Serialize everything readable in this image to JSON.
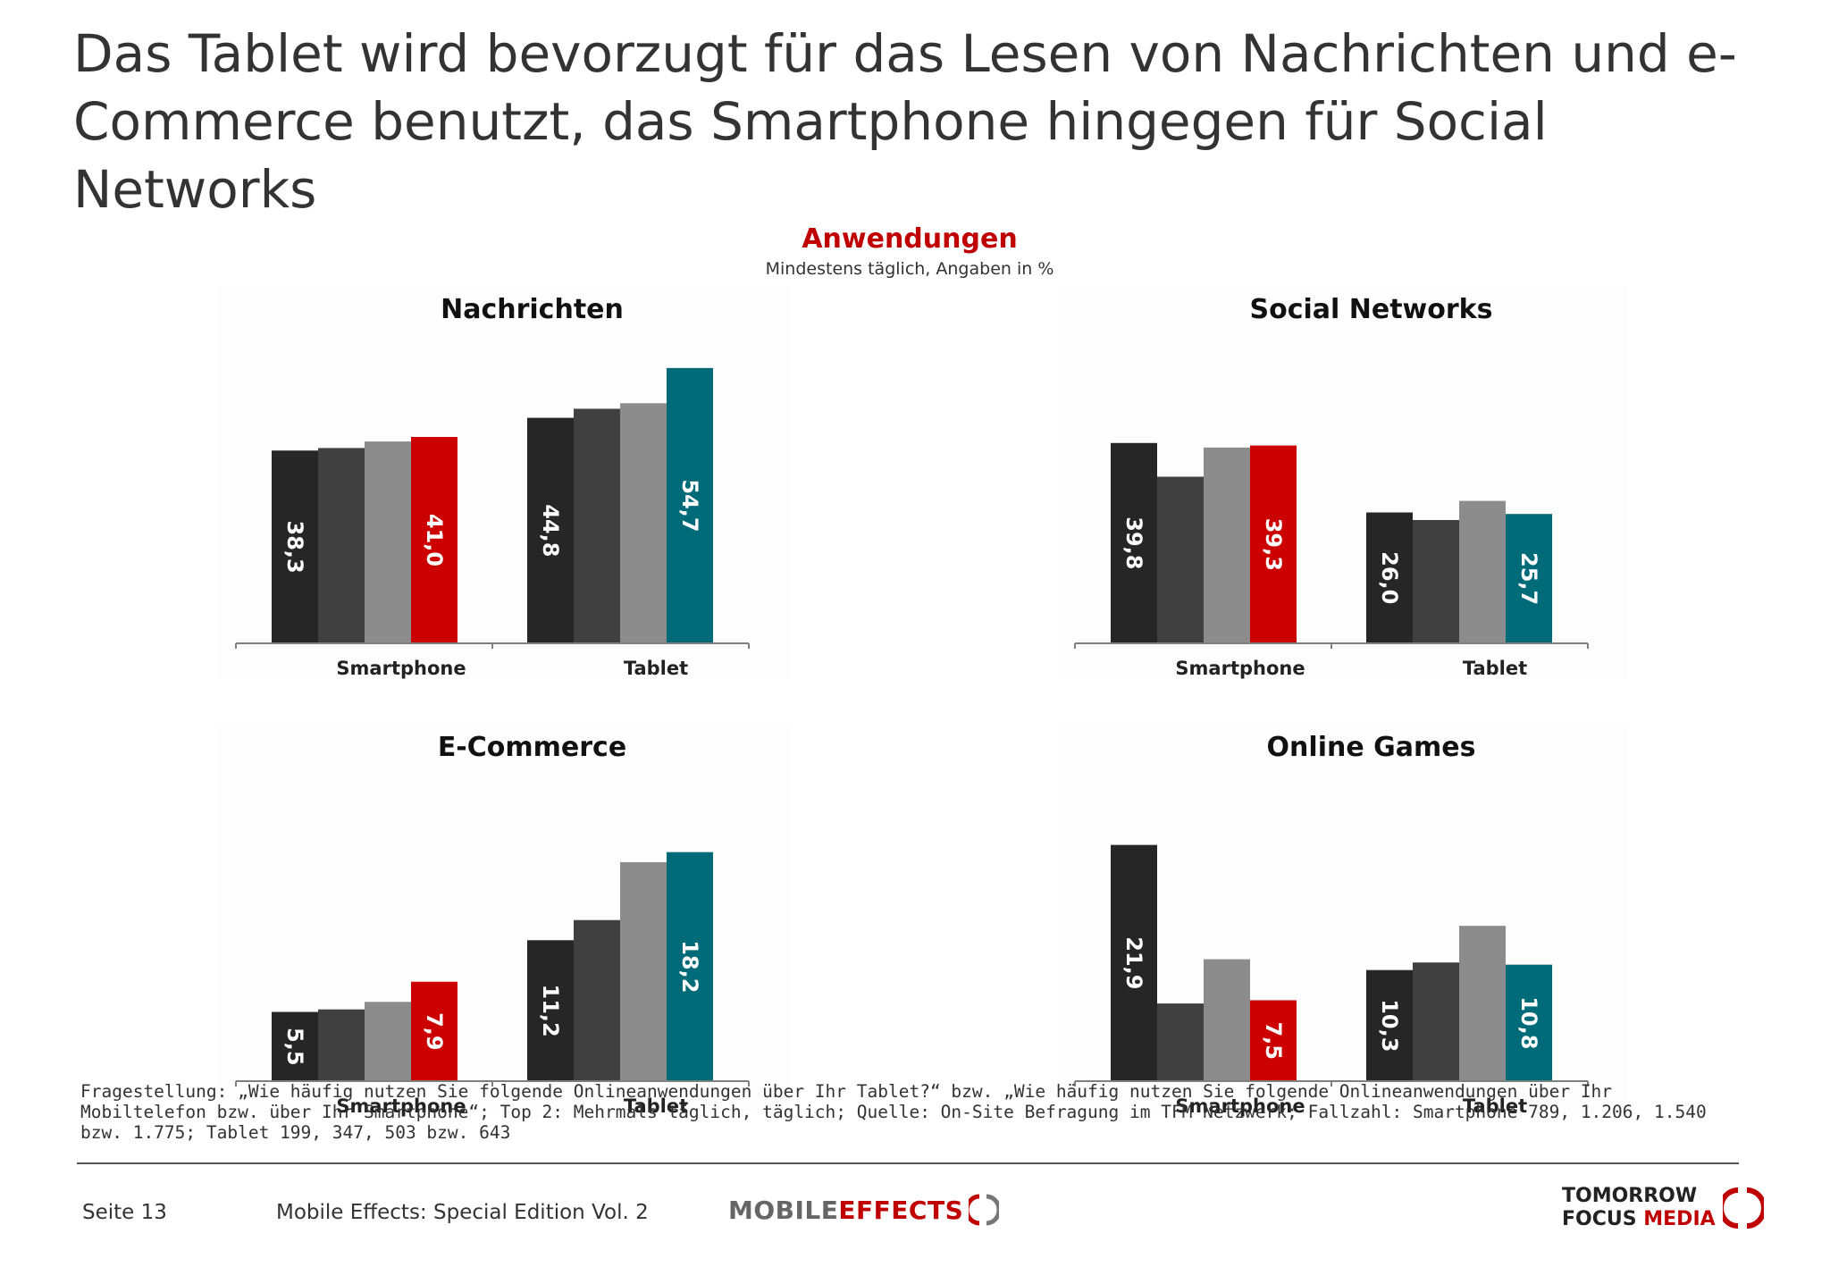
{
  "slide": {
    "title": "Das Tablet wird bevorzugt für das Lesen von Nachrichten und e-Commerce benutzt, das Smartphone hingegen für Social Networks",
    "section_title": "Anwendungen",
    "section_subtitle": "Mindestens täglich, Angaben in %"
  },
  "colors": {
    "bar_1": "#262626",
    "bar_2": "#404040",
    "bar_3": "#8c8c8c",
    "smartphone_accent": "#cc0000",
    "tablet_accent": "#006b78",
    "axis": "#7f7f7f",
    "label_text": "#ffffff"
  },
  "chart_data": [
    {
      "type": "bar",
      "title": "Nachrichten",
      "categories": [
        "Smartphone",
        "Tablet"
      ],
      "values": [
        [
          38.3,
          38.8,
          40.1,
          41.0
        ],
        [
          44.8,
          46.6,
          47.7,
          54.7
        ]
      ],
      "value_labels": [
        [
          "38,3",
          null,
          null,
          "41,0"
        ],
        [
          "44,8",
          null,
          null,
          "54,7"
        ]
      ],
      "ylim": [
        0,
        60
      ]
    },
    {
      "type": "bar",
      "title": "Social Networks",
      "categories": [
        "Smartphone",
        "Tablet"
      ],
      "values": [
        [
          39.8,
          33.1,
          38.9,
          39.3
        ],
        [
          26.0,
          24.5,
          28.3,
          25.7
        ]
      ],
      "value_labels": [
        [
          "39,8",
          null,
          null,
          "39,3"
        ],
        [
          "26,0",
          null,
          null,
          "25,7"
        ]
      ],
      "ylim": [
        0,
        60
      ]
    },
    {
      "type": "bar",
      "title": "E-Commerce",
      "categories": [
        "Smartphone",
        "Tablet"
      ],
      "values": [
        [
          5.5,
          5.7,
          6.3,
          7.9
        ],
        [
          11.2,
          12.8,
          17.4,
          18.2
        ]
      ],
      "value_labels": [
        [
          "5,5",
          null,
          null,
          "7,9"
        ],
        [
          "11,2",
          null,
          null,
          "18,2"
        ]
      ],
      "ylim": [
        0,
        24
      ]
    },
    {
      "type": "bar",
      "title": "Online Games",
      "categories": [
        "Smartphone",
        "Tablet"
      ],
      "values": [
        [
          21.9,
          7.2,
          11.3,
          7.5
        ],
        [
          10.3,
          11.0,
          14.4,
          10.8
        ]
      ],
      "value_labels": [
        [
          "21,9",
          null,
          null,
          "7,5"
        ],
        [
          "10,3",
          null,
          null,
          "10,8"
        ]
      ],
      "ylim": [
        0,
        28
      ]
    }
  ],
  "footnote": "Fragestellung: „Wie häufig nutzen Sie folgende Onlineanwendungen über Ihr Tablet?“ bzw. „Wie häufig nutzen Sie folgende Onlineanwendungen über Ihr Mobiltelefon bzw. über Ihr Smartphone“; Top 2: Mehrmals täglich, täglich; Quelle: On-Site Befragung im TFM Netzwerk; Fallzahl: Smartphone 789, 1.206, 1.540 bzw. 1.775; Tablet 199, 347, 503 bzw. 643",
  "footer": {
    "page": "Seite 13",
    "publication": "Mobile Effects: Special Edition Vol. 2",
    "logo_mobile_effects": [
      "MOBILE",
      "EFFECTS"
    ],
    "logo_tfm": [
      "TOMORROW",
      "FOCUS",
      "MEDIA"
    ]
  }
}
